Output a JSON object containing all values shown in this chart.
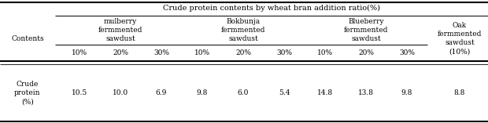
{
  "title": "Crude protein contents by wheat bran addition ratio(%)",
  "col_groups": [
    {
      "label": "mulberry\nfermmented\nsawdust",
      "subcols": [
        "10%",
        "20%",
        "30%"
      ],
      "span": 3
    },
    {
      "label": "Bokbunja\nfermmented\nsawdust",
      "subcols": [
        "10%",
        "20%",
        "30%"
      ],
      "span": 3
    },
    {
      "label": "Blueberry\nfermmented\nsawdust",
      "subcols": [
        "10%",
        "20%",
        "30%"
      ],
      "span": 3
    },
    {
      "label": "Oak\nfermmented\nsawdust\n(10%)",
      "subcols": [],
      "span": 1
    }
  ],
  "row_header": "Contents",
  "row_label": "Crude\nprotein\n(%)",
  "data_values": [
    "10.5",
    "10.0",
    "6.9",
    "9.8",
    "6.0",
    "5.4",
    "14.8",
    "13.8",
    "9.8",
    "8.8"
  ],
  "bg_color": "#ffffff",
  "text_color": "#000000",
  "font_size": 6.5,
  "title_font_size": 7.0
}
